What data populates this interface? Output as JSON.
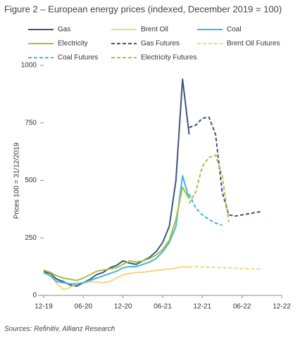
{
  "chart_data": {
    "type": "line",
    "title": "Figure 2 – European energy prices (indexed, December 2019 = 100)",
    "y_label": "Prices 100 = 31/12/2019",
    "source": "Sources: Refinitiv,  Allianz Research",
    "x": [
      "2019-12",
      "2020-01",
      "2020-02",
      "2020-03",
      "2020-04",
      "2020-05",
      "2020-06",
      "2020-07",
      "2020-08",
      "2020-09",
      "2020-10",
      "2020-11",
      "2020-12",
      "2021-01",
      "2021-02",
      "2021-03",
      "2021-04",
      "2021-05",
      "2021-06",
      "2021-07",
      "2021-08",
      "2021-09",
      "2021-10",
      "2021-11",
      "2021-12",
      "2022-01",
      "2022-02",
      "2022-03",
      "2022-04",
      "2022-05",
      "2022-06",
      "2022-07",
      "2022-08",
      "2022-09"
    ],
    "xlim": [
      "2019-12",
      "2022-12"
    ],
    "xticks": [
      {
        "value": "2019-12",
        "label": "12-19"
      },
      {
        "value": "2020-06",
        "label": "06-20"
      },
      {
        "value": "2020-12",
        "label": "12-20"
      },
      {
        "value": "2021-06",
        "label": "06-21"
      },
      {
        "value": "2021-12",
        "label": "12-21"
      },
      {
        "value": "2022-06",
        "label": "06-22"
      },
      {
        "value": "2022-12",
        "label": "12-22"
      }
    ],
    "ylim": [
      0,
      1000
    ],
    "yticks": [
      0,
      250,
      500,
      750,
      1000
    ],
    "series": [
      {
        "name": "Gas",
        "color": "#3d5480",
        "dashed": false,
        "values": [
          105,
          95,
          70,
          60,
          45,
          40,
          55,
          70,
          90,
          100,
          120,
          130,
          150,
          140,
          135,
          150,
          165,
          190,
          230,
          300,
          500,
          940,
          700,
          null,
          null,
          null,
          null,
          null,
          null,
          null,
          null,
          null,
          null,
          null
        ]
      },
      {
        "name": "Brent Oil",
        "color": "#efd77c",
        "dashed": false,
        "values": [
          95,
          90,
          50,
          25,
          35,
          50,
          55,
          60,
          58,
          55,
          60,
          75,
          90,
          95,
          100,
          100,
          105,
          108,
          112,
          115,
          118,
          125,
          122,
          null,
          null,
          null,
          null,
          null,
          null,
          null,
          null,
          null,
          null,
          null
        ]
      },
      {
        "name": "Coal",
        "color": "#3fb5e0",
        "dashed": false,
        "values": [
          100,
          85,
          60,
          55,
          50,
          50,
          55,
          65,
          75,
          85,
          95,
          105,
          120,
          125,
          125,
          135,
          145,
          160,
          190,
          230,
          300,
          520,
          420,
          null,
          null,
          null,
          null,
          null,
          null,
          null,
          null,
          null,
          null,
          null
        ]
      },
      {
        "name": "Electricity",
        "color": "#a8c03e",
        "dashed": false,
        "values": [
          110,
          100,
          85,
          75,
          70,
          65,
          75,
          90,
          105,
          110,
          115,
          120,
          135,
          150,
          145,
          150,
          160,
          175,
          200,
          240,
          330,
          470,
          420,
          null,
          null,
          null,
          null,
          null,
          null,
          null,
          null,
          null,
          null,
          null
        ]
      },
      {
        "name": "Gas Futures",
        "color": "#3d5480",
        "dashed": true,
        "values": [
          null,
          null,
          null,
          null,
          null,
          null,
          null,
          null,
          null,
          null,
          null,
          null,
          null,
          null,
          null,
          null,
          null,
          null,
          null,
          null,
          null,
          null,
          730,
          740,
          770,
          775,
          700,
          450,
          350,
          345,
          350,
          355,
          360,
          365
        ]
      },
      {
        "name": "Brent Oil Futures",
        "color": "#efd77c",
        "dashed": true,
        "values": [
          null,
          null,
          null,
          null,
          null,
          null,
          null,
          null,
          null,
          null,
          null,
          null,
          null,
          null,
          null,
          null,
          null,
          null,
          null,
          null,
          null,
          null,
          125,
          125,
          124,
          123,
          122,
          121,
          120,
          118,
          117,
          116,
          115,
          114
        ]
      },
      {
        "name": "Coal Futures",
        "color": "#3fb5e0",
        "dashed": true,
        "values": [
          null,
          null,
          null,
          null,
          null,
          null,
          null,
          null,
          null,
          null,
          null,
          null,
          null,
          null,
          null,
          null,
          null,
          null,
          null,
          null,
          null,
          null,
          440,
          380,
          350,
          330,
          315,
          305,
          null,
          null,
          null,
          null,
          null,
          null
        ]
      },
      {
        "name": "Electricity Futures",
        "color": "#a8c03e",
        "dashed": true,
        "values": [
          null,
          null,
          null,
          null,
          null,
          null,
          null,
          null,
          null,
          null,
          null,
          null,
          null,
          null,
          null,
          null,
          null,
          null,
          null,
          null,
          null,
          null,
          400,
          450,
          560,
          600,
          610,
          520,
          320,
          null,
          null,
          null,
          null,
          null
        ]
      }
    ]
  }
}
